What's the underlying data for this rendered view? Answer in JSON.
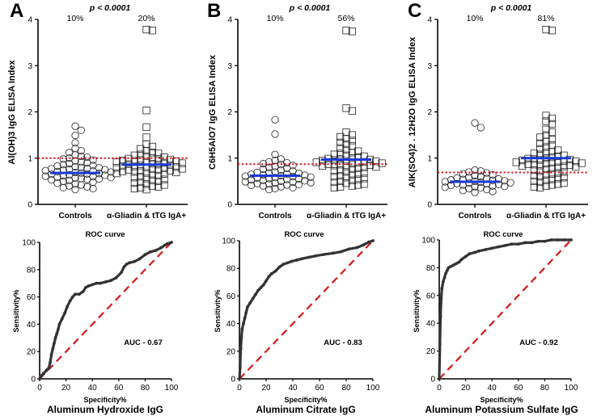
{
  "chart_data": [
    {
      "type": "scatter",
      "panel": "A",
      "p_value": "p < 0.0001",
      "group_percents": [
        "10%",
        "20%"
      ],
      "ylabel": "Al(OH)3 IgG ELISA Index",
      "categories": [
        "Controls",
        "α-Gliadin & tTG IgA+"
      ],
      "ylim": [
        0,
        4
      ],
      "yticks": [
        "0",
        "1",
        "2",
        "3",
        "4"
      ],
      "cutoff": 1.0,
      "means": [
        0.68,
        0.86
      ],
      "series": [
        {
          "name": "Controls",
          "marker": "circle",
          "values": [
            1.69,
            1.6,
            1.49,
            1.33,
            1.21,
            1.16,
            1.12,
            1.07,
            1.04,
            1.02,
            1.0,
            0.98,
            0.96,
            0.94,
            0.92,
            0.9,
            0.88,
            0.86,
            0.84,
            0.83,
            0.81,
            0.8,
            0.79,
            0.78,
            0.77,
            0.76,
            0.75,
            0.74,
            0.73,
            0.72,
            0.71,
            0.7,
            0.69,
            0.68,
            0.67,
            0.66,
            0.65,
            0.64,
            0.63,
            0.62,
            0.61,
            0.6,
            0.59,
            0.58,
            0.57,
            0.56,
            0.55,
            0.54,
            0.53,
            0.52,
            0.5,
            0.48,
            0.46,
            0.44,
            0.42,
            0.4,
            0.38,
            0.36,
            0.34,
            0.32
          ]
        },
        {
          "name": "α-Gliadin & tTG IgA+",
          "marker": "square",
          "values": [
            3.78,
            3.76,
            2.03,
            1.67,
            1.45,
            1.3,
            1.25,
            1.2,
            1.16,
            1.12,
            1.1,
            1.08,
            1.06,
            1.04,
            1.02,
            1.0,
            0.99,
            0.98,
            0.97,
            0.96,
            0.95,
            0.94,
            0.93,
            0.92,
            0.91,
            0.9,
            0.89,
            0.88,
            0.87,
            0.86,
            0.85,
            0.84,
            0.83,
            0.82,
            0.81,
            0.8,
            0.79,
            0.78,
            0.77,
            0.76,
            0.75,
            0.74,
            0.73,
            0.72,
            0.71,
            0.7,
            0.69,
            0.68,
            0.67,
            0.66,
            0.64,
            0.62,
            0.6,
            0.58,
            0.56,
            0.54,
            0.52,
            0.5,
            0.48,
            0.46,
            0.44,
            0.42,
            0.4,
            0.38,
            0.36,
            0.34,
            0.32
          ]
        }
      ]
    },
    {
      "type": "scatter",
      "panel": "B",
      "p_value": "p < 0.0001",
      "group_percents": [
        "10%",
        "56%"
      ],
      "ylabel": "C6H5AlO7 IgG ELISA Index",
      "categories": [
        "Controls",
        "α-Gliadin & tTG IgA+"
      ],
      "ylim": [
        0,
        4
      ],
      "yticks": [
        "0",
        "1",
        "2",
        "3",
        "4"
      ],
      "cutoff": 0.87,
      "means": [
        0.62,
        0.97
      ],
      "series": [
        {
          "name": "Controls",
          "marker": "circle",
          "values": [
            1.83,
            1.52,
            1.08,
            0.98,
            0.95,
            0.92,
            0.9,
            0.88,
            0.86,
            0.84,
            0.82,
            0.8,
            0.78,
            0.76,
            0.74,
            0.72,
            0.7,
            0.69,
            0.68,
            0.67,
            0.66,
            0.65,
            0.64,
            0.63,
            0.62,
            0.61,
            0.6,
            0.59,
            0.58,
            0.57,
            0.56,
            0.55,
            0.54,
            0.53,
            0.52,
            0.51,
            0.5,
            0.49,
            0.48,
            0.47,
            0.46,
            0.45,
            0.44,
            0.43,
            0.42,
            0.41,
            0.4,
            0.38,
            0.36,
            0.34,
            0.32
          ]
        },
        {
          "name": "α-Gliadin & tTG IgA+",
          "marker": "square",
          "values": [
            3.76,
            3.74,
            2.08,
            2.02,
            1.56,
            1.5,
            1.46,
            1.42,
            1.38,
            1.34,
            1.3,
            1.26,
            1.22,
            1.18,
            1.15,
            1.12,
            1.1,
            1.08,
            1.06,
            1.04,
            1.02,
            1.0,
            0.99,
            0.98,
            0.97,
            0.96,
            0.95,
            0.94,
            0.93,
            0.92,
            0.91,
            0.9,
            0.89,
            0.88,
            0.87,
            0.86,
            0.85,
            0.84,
            0.83,
            0.82,
            0.81,
            0.8,
            0.78,
            0.76,
            0.74,
            0.72,
            0.7,
            0.68,
            0.66,
            0.64,
            0.62,
            0.6,
            0.58,
            0.56,
            0.54,
            0.52,
            0.5,
            0.48,
            0.46,
            0.44,
            0.42,
            0.4,
            0.38,
            0.36
          ]
        }
      ]
    },
    {
      "type": "scatter",
      "panel": "C",
      "p_value": "p < 0.0001",
      "group_percents": [
        "10%",
        "81%"
      ],
      "ylabel": "AlK(SO4)2 . 12H2O IgG ELISA Index",
      "categories": [
        "Controls",
        "α-Gliadin & tTG IgA+"
      ],
      "ylim": [
        0,
        4
      ],
      "yticks": [
        "0",
        "1",
        "2",
        "3",
        "4"
      ],
      "cutoff": 0.69,
      "means": [
        0.49,
        1.0
      ],
      "series": [
        {
          "name": "Controls",
          "marker": "circle",
          "values": [
            1.76,
            1.66,
            0.74,
            0.72,
            0.7,
            0.68,
            0.66,
            0.64,
            0.62,
            0.6,
            0.58,
            0.57,
            0.56,
            0.55,
            0.54,
            0.53,
            0.52,
            0.51,
            0.5,
            0.49,
            0.48,
            0.47,
            0.46,
            0.45,
            0.44,
            0.43,
            0.42,
            0.41,
            0.4,
            0.39,
            0.38,
            0.37,
            0.36,
            0.34,
            0.32,
            0.3,
            0.28,
            0.26
          ]
        },
        {
          "name": "α-Gliadin & tTG IgA+",
          "marker": "square",
          "values": [
            3.78,
            3.76,
            1.92,
            1.86,
            1.8,
            1.74,
            1.62,
            1.56,
            1.5,
            1.45,
            1.4,
            1.36,
            1.32,
            1.28,
            1.24,
            1.2,
            1.17,
            1.14,
            1.12,
            1.1,
            1.08,
            1.06,
            1.04,
            1.02,
            1.0,
            0.99,
            0.98,
            0.97,
            0.96,
            0.95,
            0.94,
            0.93,
            0.92,
            0.91,
            0.9,
            0.89,
            0.88,
            0.87,
            0.86,
            0.85,
            0.84,
            0.83,
            0.82,
            0.81,
            0.8,
            0.78,
            0.76,
            0.74,
            0.72,
            0.7,
            0.68,
            0.66,
            0.64,
            0.62,
            0.6,
            0.58,
            0.56,
            0.54,
            0.52,
            0.5,
            0.48,
            0.46,
            0.44,
            0.42,
            0.4,
            0.38,
            0.36
          ]
        }
      ]
    },
    {
      "type": "line",
      "title": "ROC curve",
      "subtitle": "Aluminum Hydroxide IgG",
      "xlabel": "Specificity%",
      "ylabel": "Sensitivity%",
      "xlim": [
        0,
        100
      ],
      "ylim": [
        0,
        100
      ],
      "ticks": [
        "0",
        "20",
        "40",
        "60",
        "80",
        "100"
      ],
      "auc": "AUC - 0.67",
      "x": [
        0,
        1,
        3,
        5,
        7,
        8,
        9,
        10,
        11,
        12,
        13,
        14,
        15,
        17,
        19,
        21,
        23,
        25,
        27,
        30,
        33,
        35,
        37,
        40,
        43,
        46,
        50,
        54,
        58,
        62,
        64,
        66,
        68,
        72,
        76,
        80,
        84,
        88,
        92,
        95,
        97,
        100
      ],
      "y": [
        0,
        2,
        4,
        6,
        8,
        12,
        18,
        22,
        26,
        30,
        33,
        36,
        40,
        44,
        48,
        53,
        57,
        60,
        62,
        62,
        64,
        67,
        68,
        69,
        70,
        70,
        71,
        72,
        74,
        78,
        82,
        84,
        85,
        86,
        88,
        91,
        93,
        94,
        96,
        98,
        99,
        100
      ]
    },
    {
      "type": "line",
      "title": "ROC curve",
      "subtitle": "Aluminum Citrate IgG",
      "xlabel": "Specificity%",
      "ylabel": "Sensitivity%",
      "xlim": [
        0,
        100
      ],
      "ylim": [
        0,
        100
      ],
      "ticks": [
        "0",
        "20",
        "40",
        "60",
        "80",
        "100"
      ],
      "auc": "AUC - 0.83",
      "x": [
        0,
        0.5,
        1,
        1.5,
        2,
        3,
        4,
        5,
        6,
        8,
        10,
        12,
        14,
        16,
        18,
        20,
        22,
        24,
        27,
        30,
        33,
        36,
        39,
        43,
        47,
        52,
        57,
        63,
        70,
        76,
        82,
        88,
        93,
        97,
        100
      ],
      "y": [
        0,
        8,
        22,
        30,
        36,
        40,
        44,
        48,
        52,
        55,
        58,
        61,
        64,
        66,
        68,
        71,
        74,
        76,
        78,
        81,
        83,
        84,
        85,
        86,
        87,
        88,
        89,
        90,
        91,
        92,
        94,
        95,
        97,
        99,
        100
      ]
    },
    {
      "type": "line",
      "title": "ROC curve",
      "subtitle": "Aluminum Potassium Sulfate IgG",
      "xlabel": "Specificity%",
      "ylabel": "Sensitivity%",
      "xlim": [
        0,
        100
      ],
      "ylim": [
        0,
        100
      ],
      "ticks": [
        "0",
        "20",
        "40",
        "60",
        "80",
        "100"
      ],
      "auc": "AUC - 0.92",
      "x": [
        0,
        0.5,
        1,
        1.5,
        2,
        3,
        4,
        5,
        6,
        7,
        9,
        11,
        13,
        15,
        17,
        20,
        23,
        27,
        30,
        35,
        40,
        45,
        50,
        55,
        60,
        65,
        70,
        75,
        80,
        85,
        90,
        95,
        100
      ],
      "y": [
        0,
        25,
        45,
        58,
        65,
        70,
        73,
        76,
        78,
        80,
        81,
        82,
        83,
        84,
        86,
        88,
        90,
        91,
        92,
        93,
        94,
        95,
        96,
        97,
        97,
        98,
        98,
        99,
        99,
        100,
        100,
        100,
        100
      ]
    }
  ]
}
